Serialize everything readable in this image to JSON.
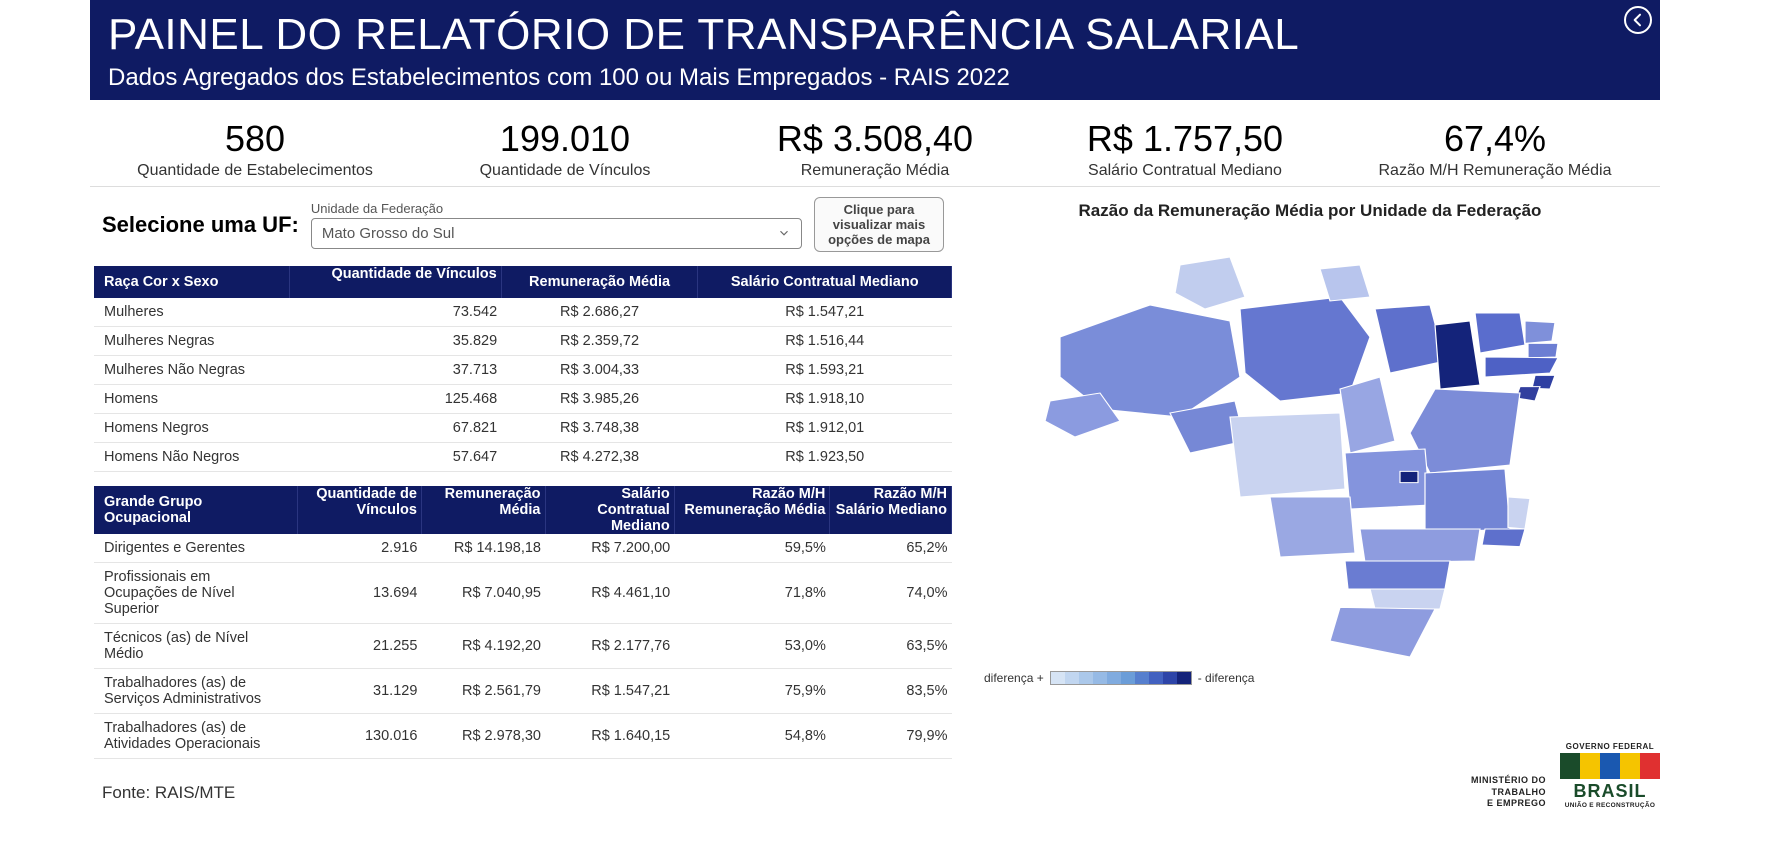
{
  "header": {
    "title": "PAINEL DO RELATÓRIO DE TRANSPARÊNCIA SALARIAL",
    "subtitle": "Dados Agregados dos Estabelecimentos com 100 ou Mais Empregados - RAIS 2022"
  },
  "kpis": [
    {
      "value": "580",
      "label": "Quantidade de Estabelecimentos"
    },
    {
      "value": "199.010",
      "label": "Quantidade de Vínculos"
    },
    {
      "value": "R$ 3.508,40",
      "label": "Remuneração Média"
    },
    {
      "value": "R$ 1.757,50",
      "label": "Salário Contratual Mediano"
    },
    {
      "value": "67,4%",
      "label": "Razão M/H Remuneração Média"
    }
  ],
  "selector": {
    "prompt": "Selecione uma UF:",
    "field_label": "Unidade da Federação",
    "selected": "Mato Grosso do Sul",
    "map_button": "Clique para visualizar mais opções de mapa"
  },
  "table1": {
    "headers": [
      "Raça Cor x Sexo",
      "Quantidade de Vínculos",
      "Remuneração Média",
      "Salário Contratual Mediano"
    ],
    "rows": [
      [
        "Mulheres",
        "73.542",
        "R$ 2.686,27",
        "R$ 1.547,21"
      ],
      [
        "Mulheres Negras",
        "35.829",
        "R$ 2.359,72",
        "R$ 1.516,44"
      ],
      [
        "Mulheres Não Negras",
        "37.713",
        "R$ 3.004,33",
        "R$ 1.593,21"
      ],
      [
        "Homens",
        "125.468",
        "R$ 3.985,26",
        "R$ 1.918,10"
      ],
      [
        "Homens Negros",
        "67.821",
        "R$ 3.748,38",
        "R$ 1.912,01"
      ],
      [
        "Homens Não Negros",
        "57.647",
        "R$ 4.272,38",
        "R$ 1.923,50"
      ]
    ]
  },
  "table2": {
    "headers": [
      "Grande Grupo Ocupacional",
      "Quantidade de Vínculos",
      "Remuneração Média",
      "Salário Contratual Mediano",
      "Razão M/H Remuneração Média",
      "Razão M/H Salário Mediano"
    ],
    "rows": [
      [
        "Dirigentes e Gerentes",
        "2.916",
        "R$ 14.198,18",
        "R$ 7.200,00",
        "59,5%",
        "65,2%"
      ],
      [
        "Profissionais em Ocupações de Nível Superior",
        "13.694",
        "R$ 7.040,95",
        "R$ 4.461,10",
        "71,8%",
        "74,0%"
      ],
      [
        "Técnicos (as) de Nível Médio",
        "21.255",
        "R$ 4.192,20",
        "R$ 2.177,76",
        "53,0%",
        "63,5%"
      ],
      [
        "Trabalhadores (as) de Serviços Administrativos",
        "31.129",
        "R$ 2.561,79",
        "R$ 1.547,21",
        "75,9%",
        "83,5%"
      ],
      [
        "Trabalhadores (as) de Atividades Operacionais",
        "130.016",
        "R$ 2.978,30",
        "R$ 1.640,15",
        "54,8%",
        "79,9%"
      ]
    ]
  },
  "map": {
    "title": "Razão da Remuneração Média por Unidade da Federação",
    "legend_plus": "diferença +",
    "legend_minus": "- diferença",
    "ramp_colors": [
      "#d6e4f5",
      "#c1d6f0",
      "#abc8ea",
      "#96bae5",
      "#80abdf",
      "#6b9dd8",
      "#567fce",
      "#4261c0",
      "#2d44a8",
      "#14237a"
    ],
    "state_stroke": "#ffffff",
    "states": {
      "AC": "#8b9be0",
      "AM": "#7a8dd9",
      "RR": "#c1cdee",
      "PA": "#6577d0",
      "AP": "#b8c5ed",
      "RO": "#7688d6",
      "TO": "#98a6e3",
      "MA": "#5e70cc",
      "PI": "#14237a",
      "CE": "#5a6dcd",
      "RN": "#7f90da",
      "PB": "#6c7ed3",
      "PE": "#4e61c5",
      "AL": "#2f3fa2",
      "SE": "#323f9e",
      "BA": "#7c8cd8",
      "MT": "#c9d3f0",
      "GO": "#8494dd",
      "DF": "#14237a",
      "MS": "#9aa8e3",
      "MG": "#7385d5",
      "ES": "#c9d3f0",
      "RJ": "#5e70cc",
      "SP": "#8e9cdf",
      "PR": "#6a7cd2",
      "SC": "#c9d3f0",
      "RS": "#8e9cdf"
    }
  },
  "source": "Fonte: RAIS/MTE",
  "ministry": {
    "l1": "MINISTÉRIO DO",
    "l2": "TRABALHO",
    "l3": "E EMPREGO"
  },
  "gov_logo": {
    "top": "GOVERNO FEDERAL",
    "word": "BRASIL",
    "sub": "UNIÃO E RECONSTRUÇÃO",
    "flag_colors": [
      "#1a4b2a",
      "#f5c400",
      "#1a58b0",
      "#f5c400",
      "#e03030"
    ]
  }
}
